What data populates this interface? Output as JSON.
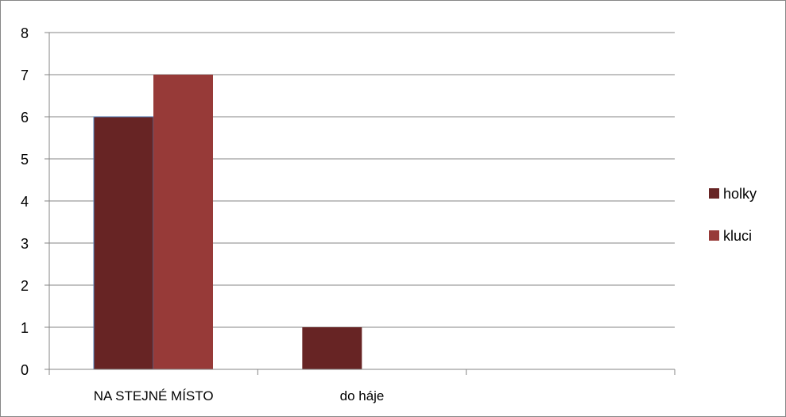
{
  "chart_data": {
    "type": "bar",
    "categories": [
      "NA STEJNÉ MÍSTO",
      "do háje",
      ""
    ],
    "series": [
      {
        "name": "holky",
        "values": [
          6,
          1,
          0
        ],
        "color": "#672424"
      },
      {
        "name": "kluci",
        "values": [
          7,
          0,
          0
        ],
        "color": "#973a38"
      }
    ],
    "ylim": [
      0,
      8
    ],
    "yticks": [
      0,
      1,
      2,
      3,
      4,
      5,
      6,
      7,
      8
    ],
    "grid": true,
    "legend_position": "right",
    "title": "",
    "xlabel": "",
    "ylabel": ""
  },
  "colors": {
    "axis": "#868686",
    "grid": "#868686",
    "bar_outline_first": "#4f81bd"
  }
}
